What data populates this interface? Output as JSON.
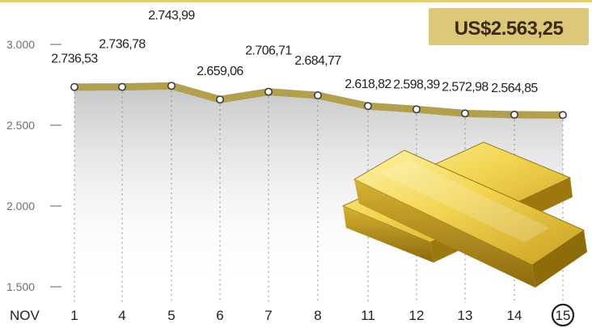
{
  "chart_data": {
    "type": "line",
    "categories": [
      "1",
      "4",
      "5",
      "6",
      "7",
      "8",
      "11",
      "12",
      "13",
      "14",
      "15"
    ],
    "x_prefix": "NOV",
    "series": [
      {
        "values": [
          2736.53,
          2736.78,
          2743.99,
          2659.06,
          2706.71,
          2684.77,
          2618.82,
          2598.39,
          2572.98,
          2564.85,
          2563.25
        ],
        "labels": [
          "2.736,53",
          "2.736,78",
          "2.743,99",
          "2.659,06",
          "2.706,71",
          "2.684,77",
          "2.618,82",
          "2.598,39",
          "2.572,98",
          "2.564,85",
          "US$2.563,25"
        ]
      }
    ],
    "yticks": [
      1500,
      2000,
      2500,
      3000
    ],
    "ytick_labels": [
      "1.500",
      "2.000",
      "2.500",
      "3.000"
    ],
    "ylim": [
      1500,
      3000
    ],
    "highlight_label": "US$2.563,25",
    "highlight_category": "15",
    "colors": {
      "line": "#b3a04e",
      "area_top": "#c9c9c9",
      "badge_bg": "#dcc878",
      "gold_light": "#f4df6a",
      "gold_dark": "#a8800f"
    },
    "grid": "vertical-dashed",
    "decoration": "gold-bars-image"
  }
}
